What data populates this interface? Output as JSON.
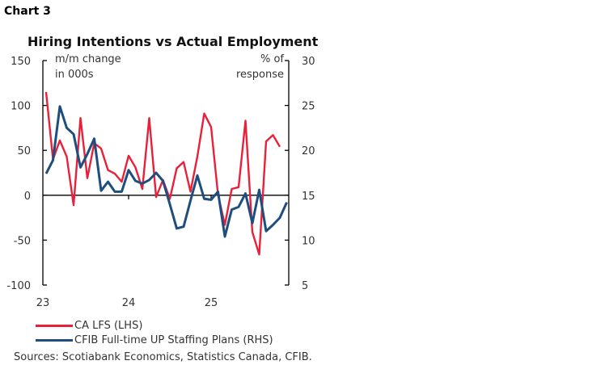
{
  "chart_label": "Chart 3",
  "chart_data": {
    "type": "line",
    "title": "Hiring Intentions vs Actual Employment",
    "left_axis": {
      "unit_label": [
        "m/m change",
        "in 000s"
      ],
      "ylim": [
        -100,
        150
      ],
      "ticks": [
        150,
        100,
        50,
        0,
        -50,
        -100
      ]
    },
    "right_axis": {
      "unit_label": [
        "% of",
        "response"
      ],
      "ylim": [
        5,
        30
      ],
      "ticks": [
        30,
        25,
        20,
        15,
        10,
        5
      ]
    },
    "x_ticks": [
      "23",
      "24",
      "25"
    ],
    "x_start": "2023-01",
    "frequency": "monthly",
    "grid": false,
    "legend_position": "bottom-left",
    "series": [
      {
        "name": "CA LFS (LHS)",
        "axis": "left",
        "color": "#e8203a",
        "values": [
          115,
          40,
          61,
          43,
          -11,
          86,
          19,
          58,
          52,
          28,
          24,
          15,
          44,
          31,
          7,
          86,
          -2,
          17,
          -4,
          30,
          37,
          4,
          43,
          91,
          76,
          1,
          -33,
          7,
          9,
          83,
          -41,
          -66,
          60,
          67,
          54
        ]
      },
      {
        "name": "CFIB Full-time UP Staffing Plans (RHS)",
        "axis": "right",
        "color": "#1f4e7e",
        "values": [
          17.4,
          18.9,
          24.9,
          22.5,
          21.8,
          18.1,
          19.6,
          21.3,
          15.5,
          16.5,
          15.4,
          15.4,
          17.8,
          16.6,
          16.3,
          16.7,
          17.5,
          16.6,
          14.0,
          11.3,
          11.5,
          14.4,
          17.2,
          14.6,
          14.5,
          15.4,
          10.4,
          13.4,
          13.7,
          15.2,
          11.9,
          15.6,
          11.0,
          11.7,
          12.5,
          14.2
        ]
      }
    ]
  },
  "sources": "Sources: Scotiabank Economics, Statistics Canada, CFIB."
}
